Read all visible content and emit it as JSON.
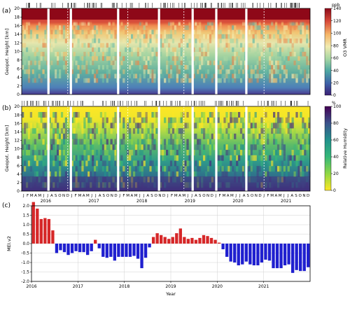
{
  "panel_labels": [
    "(a)",
    "(b)",
    "(c)"
  ],
  "chart_data": [
    {
      "type": "heatmap",
      "ylabel": "Geopot. Height [km]",
      "ylim": [
        0,
        20
      ],
      "yticks": [
        "0",
        "2",
        "4",
        "6",
        "8",
        "10",
        "12",
        "14",
        "16",
        "18",
        "20"
      ],
      "colorbar": {
        "unit": "ppb",
        "label": "O3 VMR",
        "ticks": [
          "0",
          "20",
          "40",
          "60",
          "80",
          "100",
          "120",
          "140"
        ],
        "colors": [
          "#4b2e83",
          "#3b5aa8",
          "#3e8fb0",
          "#5fb7a6",
          "#9fd1a3",
          "#e7e9ad",
          "#f7d07a",
          "#f29b58",
          "#d8523f",
          "#9e0a16"
        ]
      }
    },
    {
      "type": "heatmap",
      "ylabel": "Geopot. Height [km]",
      "ylim": [
        0,
        20
      ],
      "yticks": [
        "0",
        "2",
        "4",
        "6",
        "8",
        "10",
        "12",
        "14",
        "16",
        "18",
        "20"
      ],
      "colorbar": {
        "unit": "%",
        "label": "Relative Humidity",
        "ticks": [
          "0",
          "20",
          "40",
          "60",
          "80",
          "100"
        ],
        "colors": [
          "#fde725",
          "#a7d84b",
          "#4fbd6c",
          "#21918c",
          "#2c7a8e",
          "#3b528b",
          "#46327e",
          "#440154"
        ]
      }
    },
    {
      "type": "bar",
      "ylabel": "MEI.v2",
      "xlabel": "Year",
      "ylim": [
        -2.0,
        2.0
      ],
      "yticks": [
        "2.0",
        "1.5",
        "1.0",
        "0.5",
        "0.0",
        "-0.5",
        "-1.0",
        "-1.5",
        "-2.0"
      ],
      "year_labels": [
        "2016",
        "2017",
        "2018",
        "2019",
        "2020",
        "2021"
      ],
      "positive_color": "#d62728",
      "negative_color": "#1f1fcf",
      "start": "2016-01",
      "values": [
        2.2,
        1.85,
        1.3,
        1.35,
        1.3,
        0.7,
        -0.5,
        -0.35,
        -0.45,
        -0.6,
        -0.5,
        -0.4,
        -0.45,
        -0.45,
        -0.6,
        -0.4,
        0.2,
        -0.25,
        -0.7,
        -0.75,
        -0.7,
        -0.9,
        -0.7,
        -0.7,
        -0.7,
        -0.7,
        -0.65,
        -0.8,
        -1.3,
        -0.75,
        -0.2,
        0.35,
        0.55,
        0.45,
        0.35,
        0.25,
        0.35,
        0.55,
        0.8,
        0.35,
        0.25,
        0.3,
        0.2,
        0.3,
        0.45,
        0.4,
        0.3,
        0.2,
        0.05,
        -0.3,
        -0.7,
        -0.95,
        -1.0,
        -1.15,
        -1.1,
        -0.95,
        -1.1,
        -1.15,
        -1.15,
        -1.0,
        -0.85,
        -0.9,
        -1.3,
        -1.3,
        -1.3,
        -1.15,
        -1.1,
        -1.55,
        -1.4,
        -1.45,
        -1.45,
        -1.25
      ]
    }
  ],
  "month_labels": [
    "J",
    "F",
    "M",
    "A",
    "M",
    "J",
    "J",
    "A",
    "S",
    "O",
    "N",
    "D"
  ],
  "year_axis": [
    "2016",
    "2017",
    "2018",
    "2019",
    "2020",
    "2021"
  ]
}
